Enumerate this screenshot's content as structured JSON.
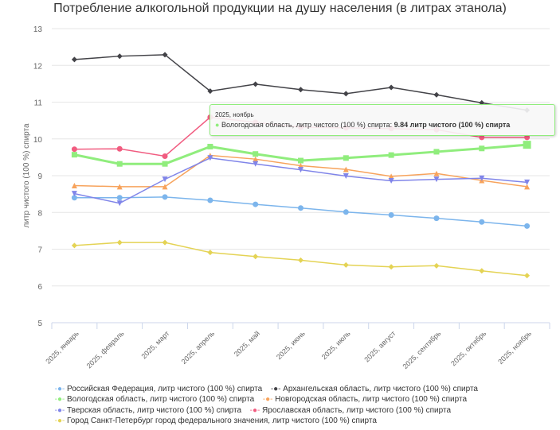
{
  "chart_data": {
    "type": "line",
    "title": "Потребление алкогольной продукции на душу населения (в литрах этанола)",
    "ylabel": "литр чистого (100 %) спирта",
    "xlabel": "",
    "ylim": [
      5,
      13
    ],
    "yticks": [
      5,
      6,
      7,
      8,
      9,
      10,
      11,
      12,
      13
    ],
    "grid": true,
    "legend": "bottom",
    "categories": [
      "2025, январь",
      "2025, февраль",
      "2025, март",
      "2025, апрель",
      "2025, май",
      "2025, июнь",
      "2025, июль",
      "2025, август",
      "2025, сентябрь",
      "2025, октябрь",
      "2025, ноябрь"
    ],
    "series": [
      {
        "name": "Российская Федерация, литр чистого (100 %) спирта",
        "color": "#7cb5ec",
        "marker": "circle",
        "values": [
          8.4,
          8.4,
          8.42,
          8.33,
          8.22,
          8.12,
          8.01,
          7.93,
          7.84,
          7.74,
          7.63
        ]
      },
      {
        "name": "Архангельская область, литр чистого (100 %) спирта",
        "color": "#434348",
        "marker": "diamond",
        "values": [
          12.16,
          12.25,
          12.29,
          11.3,
          11.49,
          11.34,
          11.23,
          11.4,
          11.2,
          10.98,
          10.78
        ]
      },
      {
        "name": "Вологодская область, литр чистого (100 %) спирта",
        "color": "#90ed7d",
        "marker": "square",
        "values": [
          9.57,
          9.32,
          9.32,
          9.79,
          9.59,
          9.41,
          9.48,
          9.56,
          9.65,
          9.74,
          9.84
        ]
      },
      {
        "name": "Новгородская область, литр чистого (100 %) спирта",
        "color": "#f7a35c",
        "marker": "triangle",
        "values": [
          8.73,
          8.7,
          8.7,
          9.55,
          9.45,
          9.27,
          9.17,
          8.98,
          9.06,
          8.87,
          8.7
        ]
      },
      {
        "name": "Тверская область, литр чистого (100 %) спирта",
        "color": "#8085e9",
        "marker": "triangle-down",
        "values": [
          8.51,
          8.25,
          8.9,
          9.48,
          9.32,
          9.16,
          8.99,
          8.86,
          8.9,
          8.93,
          8.82
        ]
      },
      {
        "name": "Ярославская область, литр чистого (100 %) спирта",
        "color": "#f15c80",
        "marker": "circle",
        "values": [
          9.72,
          9.73,
          9.53,
          10.59,
          10.45,
          10.32,
          10.3,
          10.28,
          10.25,
          10.04,
          10.04
        ]
      },
      {
        "name": "Город Санкт-Петербург город федерального значения, литр чистого (100 %) спирта",
        "color": "#e4d354",
        "marker": "diamond",
        "values": [
          7.1,
          7.18,
          7.18,
          6.91,
          6.8,
          6.7,
          6.57,
          6.52,
          6.55,
          6.41,
          6.28
        ]
      }
    ]
  },
  "tooltip": {
    "date": "2025, ноябрь",
    "series": "Вологодская область, литр чистого (100 %) спирта: ",
    "value": "9.84 литр чистого (100 %) спирта"
  }
}
